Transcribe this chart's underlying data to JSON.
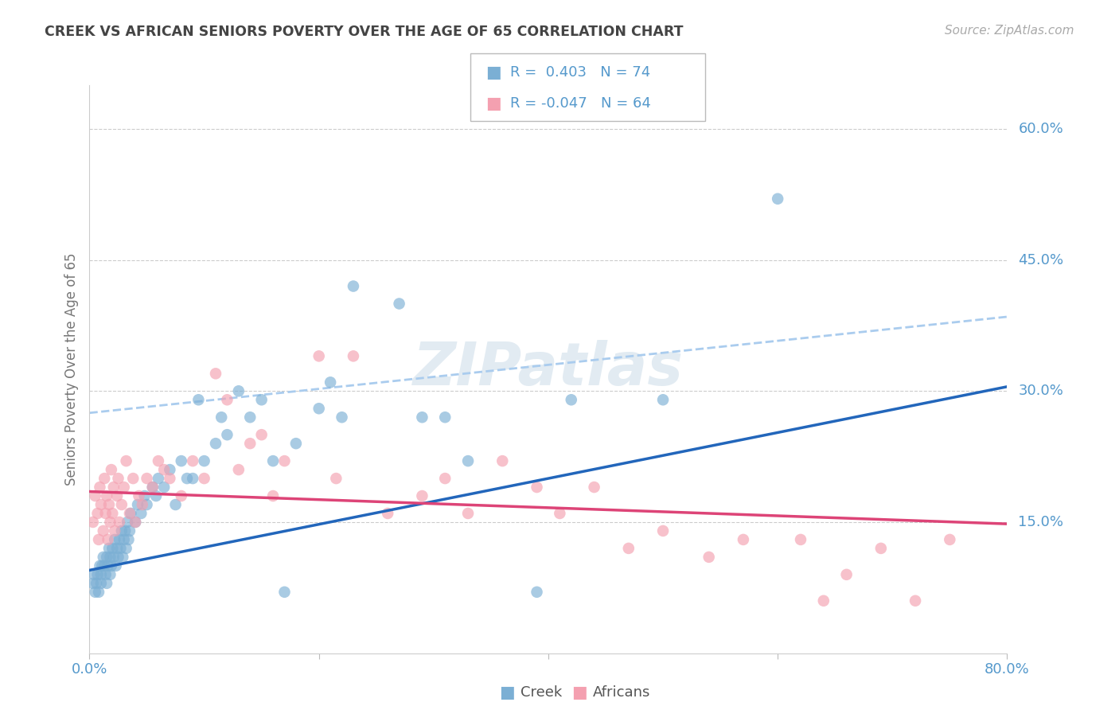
{
  "title": "CREEK VS AFRICAN SENIORS POVERTY OVER THE AGE OF 65 CORRELATION CHART",
  "source": "Source: ZipAtlas.com",
  "ylabel": "Seniors Poverty Over the Age of 65",
  "xlim": [
    0.0,
    0.8
  ],
  "ylim": [
    0.0,
    0.65
  ],
  "ytick_right": [
    0.15,
    0.3,
    0.45,
    0.6
  ],
  "ytick_right_labels": [
    "15.0%",
    "30.0%",
    "45.0%",
    "60.0%"
  ],
  "creek_color": "#7bafd4",
  "africans_color": "#f4a0b0",
  "creek_R": "0.403",
  "creek_N": "74",
  "africans_R": "-0.047",
  "africans_N": "64",
  "creek_line_color": "#2266bb",
  "africans_line_color": "#dd4477",
  "trend_dashed_color": "#aaccee",
  "background_color": "#ffffff",
  "grid_color": "#cccccc",
  "title_color": "#444444",
  "axis_label_color": "#777777",
  "tick_label_color": "#5599cc",
  "creek_line_x0": 0.0,
  "creek_line_y0": 0.095,
  "creek_line_x1": 0.8,
  "creek_line_y1": 0.305,
  "af_line_x0": 0.0,
  "af_line_y0": 0.185,
  "af_line_x1": 0.8,
  "af_line_y1": 0.148,
  "dash_line_x0": 0.0,
  "dash_line_y0": 0.275,
  "dash_line_x1": 0.8,
  "dash_line_y1": 0.385,
  "creek_x": [
    0.003,
    0.004,
    0.005,
    0.006,
    0.007,
    0.008,
    0.009,
    0.01,
    0.01,
    0.011,
    0.012,
    0.013,
    0.014,
    0.015,
    0.015,
    0.016,
    0.017,
    0.018,
    0.018,
    0.019,
    0.02,
    0.021,
    0.022,
    0.023,
    0.024,
    0.025,
    0.026,
    0.027,
    0.028,
    0.029,
    0.03,
    0.031,
    0.032,
    0.033,
    0.034,
    0.035,
    0.036,
    0.04,
    0.042,
    0.045,
    0.048,
    0.05,
    0.055,
    0.058,
    0.06,
    0.065,
    0.07,
    0.075,
    0.08,
    0.085,
    0.09,
    0.095,
    0.1,
    0.11,
    0.115,
    0.12,
    0.13,
    0.14,
    0.15,
    0.16,
    0.17,
    0.18,
    0.2,
    0.21,
    0.22,
    0.23,
    0.27,
    0.29,
    0.31,
    0.33,
    0.39,
    0.42,
    0.5,
    0.6
  ],
  "creek_y": [
    0.08,
    0.09,
    0.07,
    0.08,
    0.09,
    0.07,
    0.1,
    0.09,
    0.08,
    0.1,
    0.11,
    0.1,
    0.09,
    0.11,
    0.08,
    0.1,
    0.12,
    0.09,
    0.11,
    0.1,
    0.12,
    0.11,
    0.13,
    0.1,
    0.12,
    0.11,
    0.13,
    0.12,
    0.14,
    0.11,
    0.13,
    0.14,
    0.12,
    0.15,
    0.13,
    0.14,
    0.16,
    0.15,
    0.17,
    0.16,
    0.18,
    0.17,
    0.19,
    0.18,
    0.2,
    0.19,
    0.21,
    0.17,
    0.22,
    0.2,
    0.2,
    0.29,
    0.22,
    0.24,
    0.27,
    0.25,
    0.3,
    0.27,
    0.29,
    0.22,
    0.07,
    0.24,
    0.28,
    0.31,
    0.27,
    0.42,
    0.4,
    0.27,
    0.27,
    0.22,
    0.07,
    0.29,
    0.29,
    0.52
  ],
  "africans_x": [
    0.003,
    0.005,
    0.007,
    0.008,
    0.009,
    0.01,
    0.012,
    0.013,
    0.014,
    0.015,
    0.016,
    0.017,
    0.018,
    0.019,
    0.02,
    0.021,
    0.022,
    0.024,
    0.025,
    0.026,
    0.028,
    0.03,
    0.032,
    0.035,
    0.038,
    0.04,
    0.043,
    0.046,
    0.05,
    0.055,
    0.06,
    0.065,
    0.07,
    0.08,
    0.09,
    0.1,
    0.11,
    0.12,
    0.13,
    0.14,
    0.15,
    0.16,
    0.17,
    0.2,
    0.215,
    0.23,
    0.26,
    0.29,
    0.31,
    0.33,
    0.36,
    0.39,
    0.41,
    0.44,
    0.47,
    0.5,
    0.54,
    0.57,
    0.62,
    0.64,
    0.66,
    0.69,
    0.72,
    0.75
  ],
  "africans_y": [
    0.15,
    0.18,
    0.16,
    0.13,
    0.19,
    0.17,
    0.14,
    0.2,
    0.16,
    0.18,
    0.13,
    0.17,
    0.15,
    0.21,
    0.16,
    0.19,
    0.14,
    0.18,
    0.2,
    0.15,
    0.17,
    0.19,
    0.22,
    0.16,
    0.2,
    0.15,
    0.18,
    0.17,
    0.2,
    0.19,
    0.22,
    0.21,
    0.2,
    0.18,
    0.22,
    0.2,
    0.32,
    0.29,
    0.21,
    0.24,
    0.25,
    0.18,
    0.22,
    0.34,
    0.2,
    0.34,
    0.16,
    0.18,
    0.2,
    0.16,
    0.22,
    0.19,
    0.16,
    0.19,
    0.12,
    0.14,
    0.11,
    0.13,
    0.13,
    0.06,
    0.09,
    0.12,
    0.06,
    0.13
  ]
}
